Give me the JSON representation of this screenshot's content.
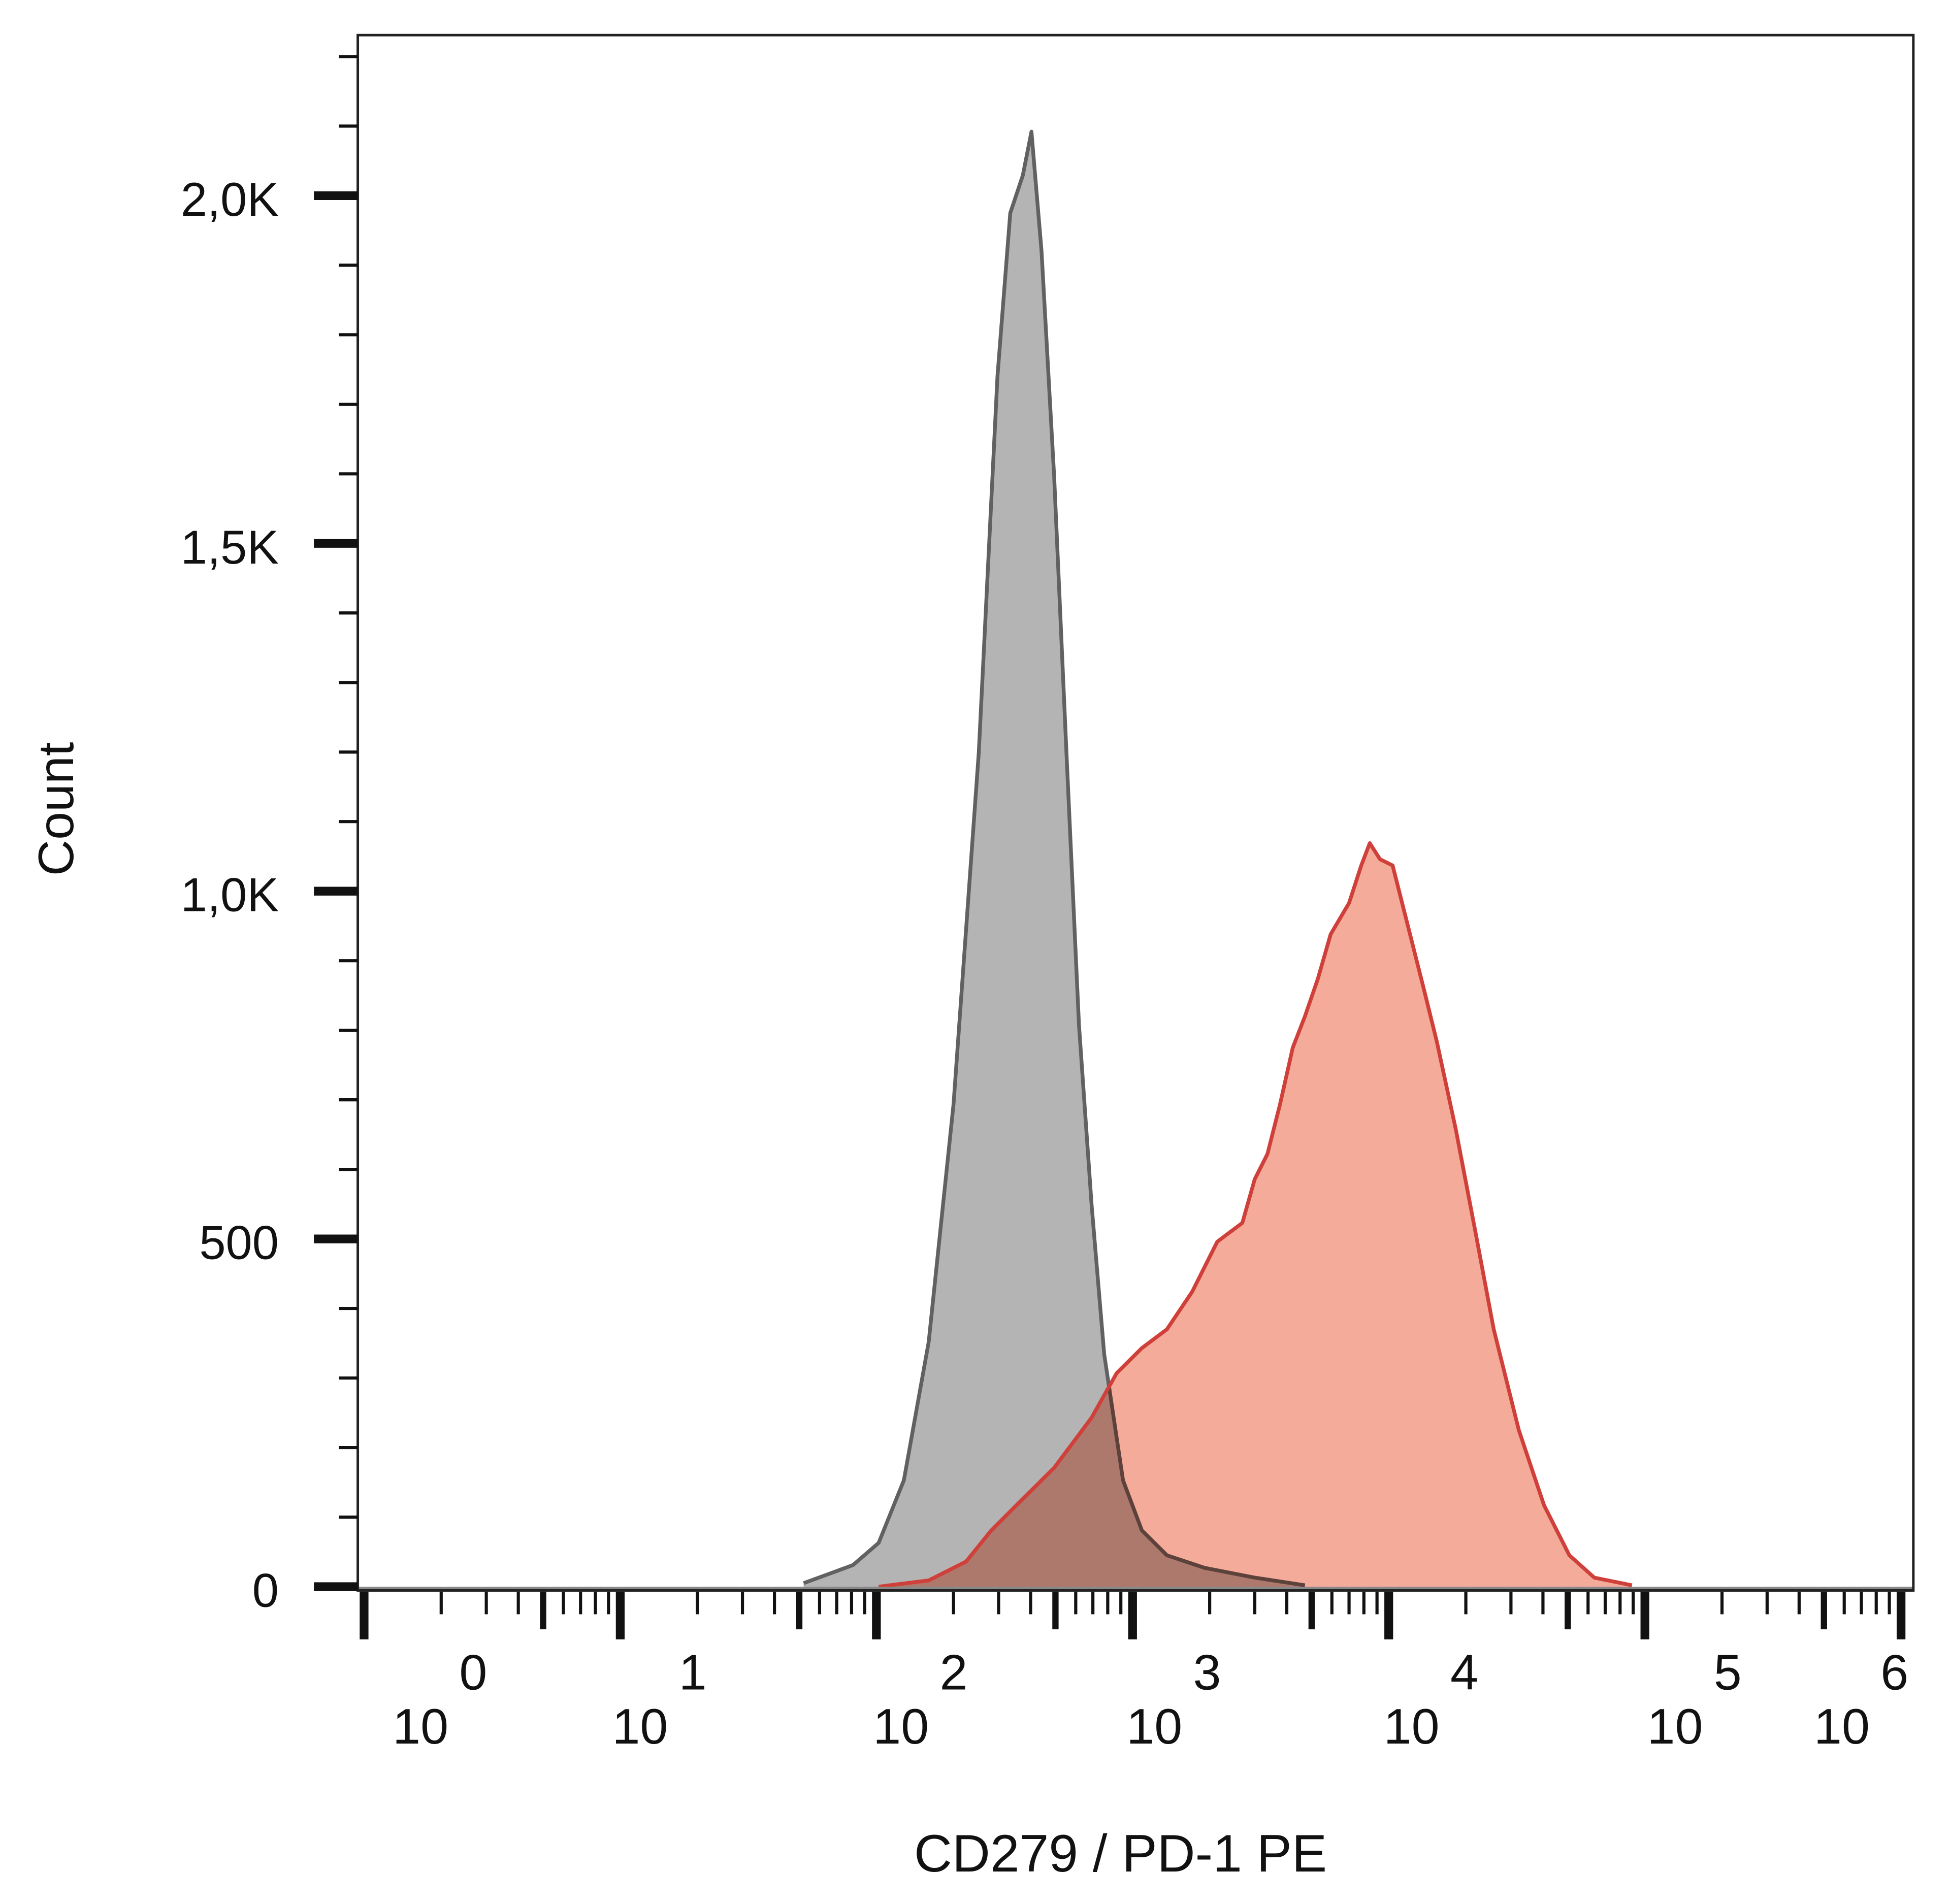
{
  "chart_data": {
    "type": "area",
    "title": "",
    "xlabel": "CD279 / PD-1 PE",
    "ylabel": "Count",
    "x_scale": "log",
    "xlim": [
      0.95,
      1100000
    ],
    "ylim": [
      0,
      2230
    ],
    "grid": false,
    "x_tick_labels": [
      {
        "base": "10",
        "exp": "0"
      },
      {
        "base": "10",
        "exp": "1"
      },
      {
        "base": "10",
        "exp": "2"
      },
      {
        "base": "10",
        "exp": "3"
      },
      {
        "base": "10",
        "exp": "4"
      },
      {
        "base": "10",
        "exp": "5"
      },
      {
        "base": "10",
        "exp": "6"
      }
    ],
    "y_ticks": [
      0,
      500,
      1000,
      1500,
      2000
    ],
    "y_tick_labels": [
      "0",
      "500",
      "1,0K",
      "1,5K",
      "2,0K"
    ],
    "series": [
      {
        "color_fill": "#b4b4b4",
        "color_line": "#616161",
        "x": [
          52,
          81,
          102,
          128,
          160,
          200,
          251,
          297,
          333,
          373,
          403,
          441,
          494,
          552,
          618,
          692,
          775,
          918,
          1087,
          1362,
          1910,
          3000,
          4710
        ],
        "y": [
          5,
          31,
          63,
          153,
          352,
          694,
          1199,
          1740,
          1975,
          2029,
          2092,
          1921,
          1596,
          1199,
          807,
          550,
          334,
          153,
          81,
          45,
          27,
          13,
          2
        ]
      },
      {
        "color_fill": "#f5ab9a",
        "color_line": "#d0403a",
        "x": [
          102,
          160,
          224,
          281,
          352,
          494,
          692,
          867,
          1087,
          1362,
          1708,
          2140,
          2683,
          3000,
          3362,
          3767,
          4222,
          4710,
          5290,
          5930,
          7000,
          7810,
          8430,
          9240,
          10350,
          11600,
          13760,
          15400,
          18270,
          21700,
          25700,
          32200,
          40400,
          50700,
          63500,
          89000
        ],
        "y": [
          0,
          9,
          36,
          81,
          117,
          171,
          243,
          307,
          343,
          370,
          424,
          496,
          523,
          586,
          622,
          694,
          775,
          820,
          874,
          938,
          983,
          1037,
          1069,
          1046,
          1037,
          965,
          857,
          784,
          658,
          514,
          370,
          225,
          117,
          45,
          13,
          2
        ]
      }
    ]
  }
}
